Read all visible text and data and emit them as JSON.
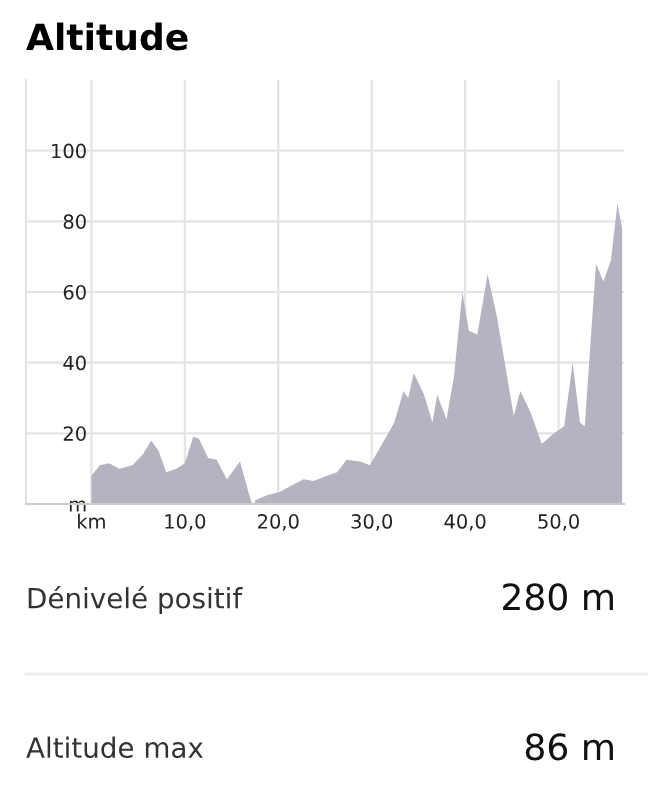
{
  "chart_data": {
    "type": "area",
    "title": "Altitude",
    "x": [
      0,
      0.9,
      1.9,
      3.0,
      4.4,
      5.5,
      6.4,
      7.2,
      8.0,
      9.1,
      10.0,
      10.9,
      11.5,
      12.5,
      13.4,
      14.5,
      15.9,
      16.8,
      17.2,
      17.35,
      17.5,
      18.8,
      20.2,
      21.6,
      22.7,
      23.8,
      25.2,
      26.3,
      27.3,
      28.8,
      29.8,
      30.9,
      32.4,
      33.4,
      33.9,
      34.5,
      35.6,
      36.5,
      37.0,
      38.0,
      38.8,
      39.7,
      40.4,
      41.3,
      42.4,
      43.4,
      45.2,
      45.9,
      47.0,
      48.2,
      49.5,
      50.6,
      51.5,
      52.3,
      52.8,
      54.0,
      54.8,
      55.6,
      56.3,
      56.8
    ],
    "series": [
      {
        "color": "#b4b4c0",
        "values": [
          8,
          11,
          11.5,
          10,
          11,
          14,
          18,
          15,
          9,
          10,
          11.5,
          19,
          18.5,
          13,
          12.5,
          7,
          12,
          3.5,
          0,
          null,
          1,
          2.5,
          3.5,
          5.5,
          7,
          6.5,
          8,
          9,
          12.5,
          12,
          11,
          16,
          23,
          32,
          30,
          37,
          31,
          23,
          31,
          24,
          36,
          60,
          49,
          48,
          65,
          53,
          25,
          32,
          26,
          17,
          20,
          22,
          40,
          23,
          22,
          68,
          63,
          69,
          85,
          78
        ]
      }
    ],
    "xlim": [
      -7,
      57
    ],
    "ylim": [
      0,
      120
    ],
    "xticks": [
      {
        "value": 0,
        "label": "km"
      },
      {
        "value": 10,
        "label": "10,0"
      },
      {
        "value": 20,
        "label": "20,0"
      },
      {
        "value": 30,
        "label": "30,0"
      },
      {
        "value": 40,
        "label": "40,0"
      },
      {
        "value": 50,
        "label": "50,0"
      }
    ],
    "yticks": [
      {
        "value": 0,
        "label": "m"
      },
      20,
      40,
      60,
      80,
      100
    ],
    "grid": true,
    "annotations": [
      "Dénivelé positif",
      "280 m",
      "Altitude max",
      "86 m"
    ]
  }
}
